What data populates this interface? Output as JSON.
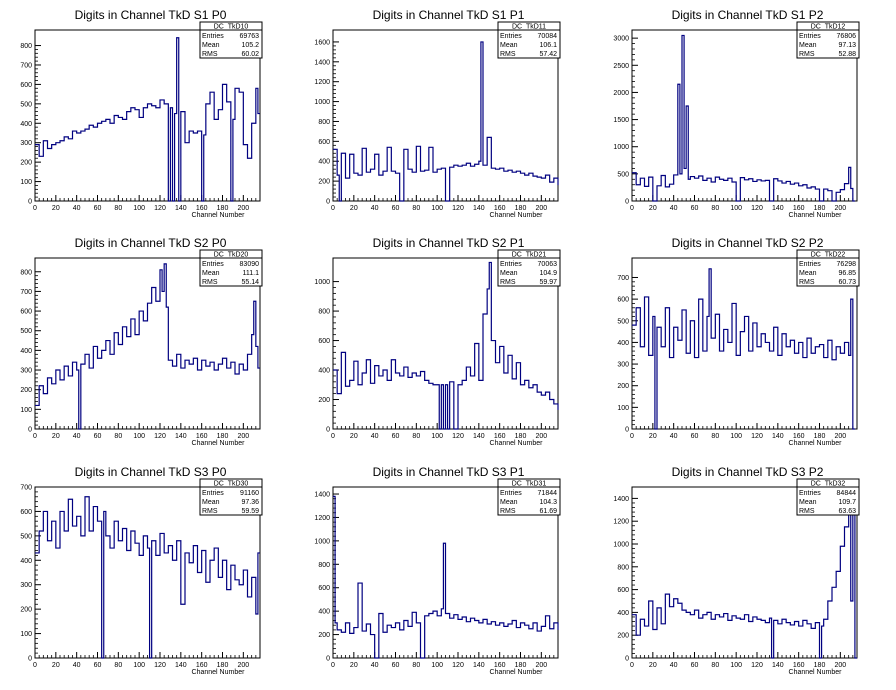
{
  "colors": {
    "line": "#000080",
    "axis": "#000000",
    "background": "#ffffff"
  },
  "xlabel": "Channel Number",
  "stats_labels": {
    "entries": "Entries",
    "mean": "Mean",
    "rms": "RMS"
  },
  "chart_data": [
    {
      "type": "line",
      "title": "Digits in Channel TkD S1 P0",
      "stats": {
        "name": "DC_TkD10",
        "entries": "69763",
        "mean": "105.2",
        "rms": "60.02"
      },
      "xlabel": "Channel Number",
      "xlim": [
        0,
        216
      ],
      "ylim": [
        0,
        880
      ],
      "xticks": [
        0,
        20,
        40,
        60,
        80,
        100,
        120,
        140,
        160,
        180,
        200
      ],
      "yticks": [
        0,
        100,
        200,
        300,
        400,
        500,
        600,
        700,
        800
      ],
      "x": [
        0,
        4,
        8,
        12,
        16,
        20,
        24,
        28,
        32,
        36,
        40,
        44,
        48,
        52,
        56,
        60,
        64,
        68,
        72,
        76,
        80,
        84,
        88,
        92,
        96,
        100,
        104,
        108,
        112,
        116,
        120,
        124,
        128,
        130,
        132,
        134,
        136,
        138,
        140,
        144,
        148,
        152,
        156,
        160,
        162,
        164,
        168,
        172,
        176,
        180,
        184,
        188,
        190,
        192,
        196,
        200,
        204,
        208,
        212,
        214
      ],
      "values": [
        290,
        230,
        310,
        270,
        290,
        300,
        310,
        330,
        320,
        360,
        350,
        360,
        370,
        390,
        380,
        400,
        410,
        420,
        400,
        440,
        430,
        420,
        460,
        480,
        470,
        430,
        480,
        500,
        490,
        480,
        520,
        500,
        0,
        480,
        0,
        450,
        840,
        0,
        460,
        300,
        360,
        350,
        360,
        0,
        340,
        500,
        560,
        420,
        470,
        600,
        510,
        0,
        420,
        580,
        560,
        290,
        220,
        400,
        580,
        450
      ]
    },
    {
      "type": "line",
      "title": "Digits in Channel TkD S1 P1",
      "stats": {
        "name": "DC_TkD11",
        "entries": "70084",
        "mean": "106.1",
        "rms": "57.42"
      },
      "xlabel": "Channel Number",
      "xlim": [
        0,
        216
      ],
      "ylim": [
        0,
        1720
      ],
      "xticks": [
        0,
        20,
        40,
        60,
        80,
        100,
        120,
        140,
        160,
        180,
        200
      ],
      "yticks": [
        0,
        200,
        400,
        600,
        800,
        1000,
        1200,
        1400,
        1600
      ],
      "x": [
        0,
        4,
        6,
        8,
        12,
        16,
        20,
        24,
        28,
        32,
        36,
        40,
        44,
        48,
        52,
        56,
        60,
        64,
        68,
        72,
        76,
        80,
        84,
        88,
        92,
        96,
        100,
        104,
        108,
        112,
        116,
        120,
        124,
        128,
        132,
        136,
        140,
        142,
        144,
        148,
        152,
        156,
        160,
        164,
        168,
        172,
        176,
        180,
        184,
        188,
        192,
        196,
        200,
        204,
        208,
        212,
        216
      ],
      "values": [
        520,
        260,
        0,
        480,
        230,
        470,
        280,
        260,
        530,
        290,
        320,
        470,
        260,
        300,
        540,
        300,
        280,
        0,
        520,
        320,
        290,
        550,
        300,
        310,
        540,
        290,
        320,
        330,
        0,
        340,
        360,
        350,
        360,
        380,
        350,
        370,
        400,
        1600,
        360,
        640,
        330,
        320,
        330,
        300,
        310,
        290,
        300,
        280,
        260,
        280,
        250,
        240,
        230,
        260,
        190,
        230,
        160
      ]
    },
    {
      "type": "line",
      "title": "Digits in Channel TkD S1 P2",
      "stats": {
        "name": "DC_TkD12",
        "entries": "76806",
        "mean": "97.13",
        "rms": "52.88"
      },
      "xlabel": "Channel Number",
      "xlim": [
        0,
        216
      ],
      "ylim": [
        0,
        3150
      ],
      "xticks": [
        0,
        20,
        40,
        60,
        80,
        100,
        120,
        140,
        160,
        180,
        200
      ],
      "yticks": [
        0,
        500,
        1000,
        1500,
        2000,
        2500,
        3000
      ],
      "x": [
        0,
        4,
        8,
        12,
        16,
        20,
        24,
        28,
        32,
        36,
        40,
        44,
        46,
        48,
        50,
        52,
        54,
        56,
        60,
        64,
        68,
        72,
        76,
        80,
        84,
        88,
        92,
        96,
        100,
        104,
        108,
        112,
        116,
        120,
        124,
        128,
        132,
        136,
        140,
        144,
        148,
        152,
        156,
        160,
        164,
        168,
        172,
        176,
        180,
        184,
        188,
        192,
        196,
        200,
        204,
        208,
        210,
        212
      ],
      "values": [
        520,
        300,
        420,
        270,
        440,
        0,
        280,
        470,
        260,
        310,
        480,
        2150,
        500,
        3050,
        600,
        1750,
        400,
        450,
        420,
        460,
        380,
        420,
        350,
        440,
        400,
        380,
        420,
        350,
        0,
        430,
        390,
        410,
        360,
        390,
        370,
        380,
        0,
        410,
        370,
        330,
        360,
        310,
        330,
        280,
        300,
        240,
        260,
        220,
        0,
        220,
        190,
        0,
        160,
        210,
        320,
        620,
        230,
        0
      ]
    },
    {
      "type": "line",
      "title": "Digits in Channel TkD S2 P0",
      "stats": {
        "name": "DC_TkD20",
        "entries": "83090",
        "mean": "111.1",
        "rms": "55.14"
      },
      "xlabel": "Channel Number",
      "xlim": [
        0,
        216
      ],
      "ylim": [
        0,
        870
      ],
      "xticks": [
        0,
        20,
        40,
        60,
        80,
        100,
        120,
        140,
        160,
        180,
        200
      ],
      "yticks": [
        0,
        100,
        200,
        300,
        400,
        500,
        600,
        700,
        800
      ],
      "x": [
        0,
        4,
        8,
        12,
        16,
        20,
        24,
        28,
        32,
        36,
        40,
        42,
        44,
        48,
        52,
        56,
        60,
        64,
        68,
        72,
        76,
        80,
        84,
        88,
        92,
        96,
        100,
        104,
        108,
        112,
        116,
        120,
        122,
        124,
        126,
        128,
        132,
        136,
        140,
        144,
        148,
        152,
        156,
        160,
        164,
        168,
        172,
        176,
        180,
        184,
        188,
        192,
        196,
        200,
        204,
        208,
        210,
        212,
        214
      ],
      "values": [
        120,
        220,
        180,
        260,
        230,
        300,
        250,
        320,
        270,
        340,
        300,
        0,
        330,
        380,
        310,
        420,
        360,
        400,
        450,
        380,
        490,
        430,
        520,
        470,
        560,
        480,
        600,
        550,
        640,
        720,
        650,
        810,
        700,
        840,
        620,
        350,
        320,
        380,
        310,
        350,
        330,
        360,
        300,
        350,
        320,
        340,
        300,
        330,
        360,
        310,
        340,
        280,
        330,
        300,
        380,
        480,
        650,
        420,
        310
      ]
    },
    {
      "type": "line",
      "title": "Digits in Channel TkD S2 P1",
      "stats": {
        "name": "DC_TkD21",
        "entries": "70063",
        "mean": "104.9",
        "rms": "59.97"
      },
      "xlabel": "Channel Number",
      "xlim": [
        0,
        216
      ],
      "ylim": [
        0,
        1160
      ],
      "xticks": [
        0,
        20,
        40,
        60,
        80,
        100,
        120,
        140,
        160,
        180,
        200
      ],
      "yticks": [
        0,
        200,
        400,
        600,
        800,
        1000
      ],
      "x": [
        0,
        4,
        8,
        12,
        16,
        20,
        24,
        28,
        32,
        36,
        40,
        44,
        48,
        52,
        56,
        60,
        64,
        68,
        72,
        76,
        80,
        84,
        88,
        92,
        96,
        100,
        102,
        104,
        106,
        108,
        110,
        112,
        116,
        120,
        124,
        128,
        132,
        136,
        140,
        144,
        148,
        150,
        152,
        156,
        160,
        164,
        168,
        172,
        176,
        180,
        184,
        188,
        192,
        196,
        200,
        204,
        208,
        212,
        216
      ],
      "values": [
        400,
        240,
        520,
        290,
        330,
        460,
        300,
        380,
        470,
        310,
        430,
        360,
        400,
        330,
        470,
        380,
        360,
        420,
        350,
        380,
        360,
        390,
        330,
        310,
        300,
        300,
        0,
        300,
        0,
        300,
        0,
        320,
        0,
        300,
        330,
        420,
        360,
        580,
        330,
        780,
        950,
        1130,
        600,
        450,
        560,
        380,
        500,
        340,
        450,
        300,
        330,
        280,
        300,
        250,
        230,
        250,
        200,
        170,
        130
      ]
    },
    {
      "type": "line",
      "title": "Digits in Channel TkD S2 P2",
      "stats": {
        "name": "DC_TkD22",
        "entries": "76298",
        "mean": "96.85",
        "rms": "60.73"
      },
      "xlabel": "Channel Number",
      "xlim": [
        0,
        216
      ],
      "ylim": [
        0,
        790
      ],
      "xticks": [
        0,
        20,
        40,
        60,
        80,
        100,
        120,
        140,
        160,
        180,
        200
      ],
      "yticks": [
        0,
        100,
        200,
        300,
        400,
        500,
        600,
        700
      ],
      "x": [
        0,
        4,
        8,
        12,
        16,
        20,
        22,
        24,
        28,
        32,
        36,
        40,
        44,
        48,
        52,
        56,
        60,
        64,
        68,
        72,
        74,
        76,
        80,
        84,
        88,
        92,
        96,
        100,
        104,
        108,
        112,
        116,
        120,
        124,
        128,
        132,
        136,
        140,
        144,
        148,
        152,
        156,
        160,
        164,
        168,
        172,
        176,
        180,
        184,
        188,
        192,
        196,
        200,
        204,
        208,
        210,
        212
      ],
      "values": [
        480,
        560,
        380,
        610,
        340,
        520,
        0,
        470,
        380,
        560,
        330,
        470,
        410,
        550,
        350,
        500,
        330,
        600,
        360,
        520,
        740,
        420,
        530,
        360,
        460,
        400,
        580,
        340,
        450,
        520,
        360,
        490,
        380,
        440,
        400,
        360,
        470,
        340,
        440,
        380,
        410,
        350,
        400,
        330,
        420,
        350,
        380,
        390,
        330,
        410,
        320,
        380,
        350,
        400,
        340,
        600,
        0
      ]
    },
    {
      "type": "line",
      "title": "Digits in Channel TkD S3 P0",
      "stats": {
        "name": "DC_TkD30",
        "entries": "91160",
        "mean": "97.36",
        "rms": "59.59"
      },
      "xlabel": "Channel Number",
      "xlim": [
        0,
        216
      ],
      "ylim": [
        0,
        700
      ],
      "xticks": [
        0,
        20,
        40,
        60,
        80,
        100,
        120,
        140,
        160,
        180,
        200
      ],
      "yticks": [
        0,
        100,
        200,
        300,
        400,
        500,
        600,
        700
      ],
      "x": [
        0,
        4,
        8,
        12,
        16,
        20,
        24,
        28,
        32,
        36,
        40,
        44,
        48,
        52,
        56,
        60,
        64,
        66,
        68,
        72,
        76,
        80,
        84,
        88,
        92,
        96,
        100,
        104,
        108,
        110,
        112,
        116,
        120,
        124,
        128,
        132,
        136,
        140,
        144,
        148,
        152,
        156,
        160,
        164,
        168,
        172,
        176,
        180,
        184,
        188,
        192,
        196,
        200,
        204,
        208,
        212,
        214
      ],
      "values": [
        430,
        520,
        600,
        480,
        560,
        450,
        600,
        520,
        650,
        540,
        580,
        500,
        660,
        520,
        620,
        560,
        0,
        600,
        500,
        450,
        560,
        480,
        530,
        440,
        520,
        470,
        420,
        500,
        450,
        0,
        480,
        420,
        510,
        430,
        460,
        400,
        480,
        220,
        430,
        390,
        460,
        350,
        440,
        310,
        400,
        450,
        330,
        400,
        280,
        380,
        320,
        300,
        360,
        250,
        330,
        180,
        430
      ]
    },
    {
      "type": "line",
      "title": "Digits in Channel TkD S3 P1",
      "stats": {
        "name": "DC_TkD31",
        "entries": "71844",
        "mean": "104.3",
        "rms": "61.69"
      },
      "xlabel": "Channel Number",
      "xlim": [
        0,
        216
      ],
      "ylim": [
        0,
        1460
      ],
      "xticks": [
        0,
        20,
        40,
        60,
        80,
        100,
        120,
        140,
        160,
        180,
        200
      ],
      "yticks": [
        0,
        200,
        400,
        600,
        800,
        1000,
        1200,
        1400
      ],
      "x": [
        0,
        2,
        4,
        8,
        12,
        16,
        20,
        24,
        28,
        32,
        36,
        40,
        44,
        48,
        52,
        56,
        60,
        64,
        68,
        72,
        76,
        80,
        84,
        88,
        92,
        96,
        100,
        104,
        106,
        108,
        112,
        116,
        120,
        124,
        128,
        132,
        136,
        140,
        144,
        148,
        152,
        156,
        160,
        164,
        168,
        172,
        176,
        180,
        184,
        188,
        192,
        196,
        200,
        204,
        208,
        212,
        216
      ],
      "values": [
        1380,
        300,
        240,
        220,
        300,
        210,
        260,
        640,
        230,
        290,
        200,
        0,
        380,
        220,
        280,
        260,
        300,
        240,
        320,
        270,
        390,
        300,
        0,
        360,
        380,
        400,
        360,
        420,
        980,
        380,
        340,
        370,
        330,
        350,
        310,
        340,
        320,
        300,
        330,
        290,
        310,
        280,
        300,
        270,
        290,
        320,
        260,
        300,
        280,
        250,
        300,
        230,
        270,
        360,
        250,
        300,
        240
      ]
    },
    {
      "type": "line",
      "title": "Digits in Channel TkD S3 P2",
      "stats": {
        "name": "DC_TkD32",
        "entries": "84844",
        "mean": "109.7",
        "rms": "63.63"
      },
      "xlabel": "Channel Number",
      "xlim": [
        0,
        216
      ],
      "ylim": [
        0,
        1500
      ],
      "xticks": [
        0,
        20,
        40,
        60,
        80,
        100,
        120,
        140,
        160,
        180,
        200
      ],
      "yticks": [
        0,
        200,
        400,
        600,
        800,
        1000,
        1200,
        1400
      ],
      "x": [
        0,
        4,
        8,
        12,
        16,
        20,
        24,
        28,
        32,
        36,
        40,
        44,
        48,
        52,
        56,
        60,
        64,
        68,
        72,
        76,
        80,
        84,
        88,
        92,
        96,
        100,
        104,
        108,
        112,
        116,
        120,
        124,
        128,
        132,
        134,
        136,
        140,
        144,
        148,
        152,
        156,
        160,
        164,
        168,
        172,
        176,
        180,
        182,
        184,
        188,
        192,
        196,
        200,
        204,
        208,
        210,
        212,
        214
      ],
      "values": [
        380,
        200,
        340,
        280,
        500,
        250,
        440,
        300,
        560,
        450,
        520,
        480,
        420,
        400,
        380,
        420,
        350,
        380,
        400,
        340,
        380,
        360,
        390,
        330,
        370,
        350,
        340,
        380,
        320,
        360,
        340,
        330,
        310,
        350,
        0,
        330,
        300,
        340,
        310,
        290,
        320,
        280,
        330,
        300,
        260,
        310,
        0,
        280,
        340,
        500,
        620,
        760,
        980,
        1150,
        1380,
        500,
        1460,
        0
      ]
    }
  ]
}
